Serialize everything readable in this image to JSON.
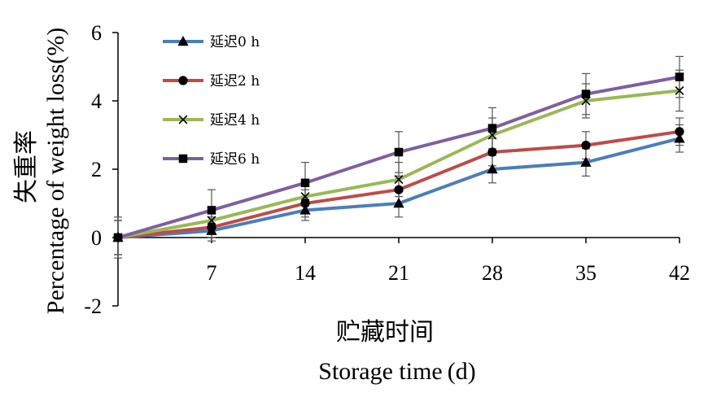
{
  "chart_data": {
    "type": "line",
    "x_ticks": [
      "7",
      "14",
      "21",
      "28",
      "35",
      "42"
    ],
    "y_ticks": [
      "-2",
      "0",
      "2",
      "4",
      "6"
    ],
    "x": [
      0,
      7,
      14,
      21,
      28,
      35,
      42
    ],
    "ylim": [
      -2,
      6
    ],
    "xlim": [
      0,
      42
    ],
    "xlabel_cn": "贮藏时间",
    "xlabel_en": "Storage time (d)",
    "ylabel_cn": "失重率",
    "ylabel_en": "Percentage of weight loss(%)",
    "grid": false,
    "legend_position": "top-left",
    "series": [
      {
        "name": "延迟0 h",
        "color": "#4a7ebb",
        "marker": "triangle",
        "values": [
          0,
          0.2,
          0.8,
          1.0,
          2.0,
          2.2,
          2.9
        ],
        "errors": [
          0.5,
          0.3,
          0.3,
          0.4,
          0.4,
          0.4,
          0.4
        ]
      },
      {
        "name": "延迟2 h",
        "color": "#be4b48",
        "marker": "circle",
        "values": [
          0,
          0.3,
          1.0,
          1.4,
          2.5,
          2.7,
          3.1
        ],
        "errors": [
          0.5,
          0.3,
          0.4,
          0.4,
          0.4,
          0.4,
          0.4
        ]
      },
      {
        "name": "延迟4 h",
        "color": "#98b954",
        "marker": "x",
        "values": [
          0,
          0.5,
          1.2,
          1.7,
          3.0,
          4.0,
          4.3
        ],
        "errors": [
          0.5,
          0.3,
          0.5,
          0.5,
          0.5,
          0.5,
          0.6
        ]
      },
      {
        "name": "延迟6 h",
        "color": "#7d60a0",
        "marker": "square",
        "values": [
          0,
          0.8,
          1.6,
          2.5,
          3.2,
          4.2,
          4.7
        ],
        "errors": [
          0.6,
          0.6,
          0.6,
          0.6,
          0.6,
          0.6,
          0.6
        ]
      }
    ]
  }
}
